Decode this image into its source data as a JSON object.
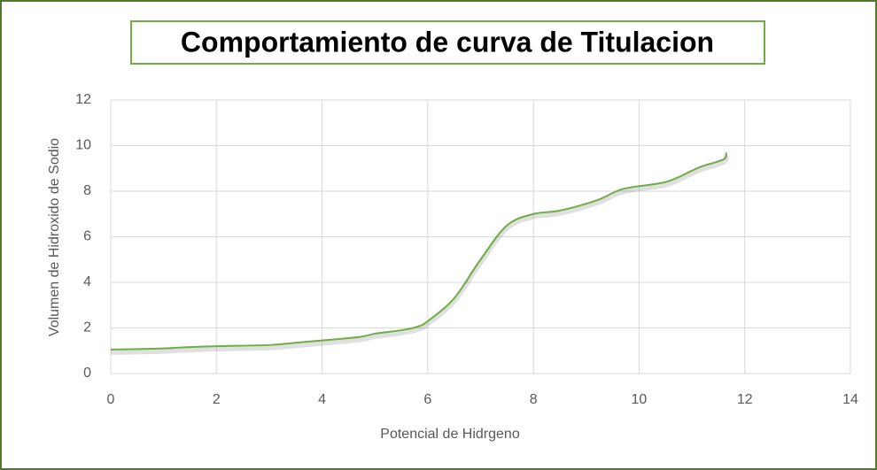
{
  "chart_data": {
    "type": "line",
    "title": "Comportamiento de curva de Titulacion",
    "x_label": "Potencial de Hidrgeno",
    "y_label": "Volumen de Hidroxido de Sodio",
    "x": [
      0,
      1,
      1.4,
      2,
      3,
      3.5,
      4,
      4.7,
      5,
      5.5,
      5.8,
      6,
      6.5,
      7,
      7.5,
      8,
      8.5,
      9.2,
      9.7,
      10.5,
      11,
      11.2,
      11.6,
      11.65
    ],
    "series": [
      {
        "name": "Volumen",
        "color": "#70ad47",
        "values": [
          1.05,
          1.1,
          1.15,
          1.2,
          1.25,
          1.35,
          1.45,
          1.6,
          1.75,
          1.9,
          2.05,
          2.3,
          3.3,
          5,
          6.5,
          7,
          7.15,
          7.6,
          8.1,
          8.4,
          8.9,
          9.1,
          9.4,
          9.7
        ]
      }
    ],
    "xlim": [
      0,
      14
    ],
    "xticks": [
      0,
      2,
      4,
      6,
      8,
      10,
      12,
      14
    ],
    "ylim": [
      0,
      12
    ],
    "yticks": [
      0,
      2,
      4,
      6,
      8,
      10,
      12
    ],
    "grid": true
  }
}
